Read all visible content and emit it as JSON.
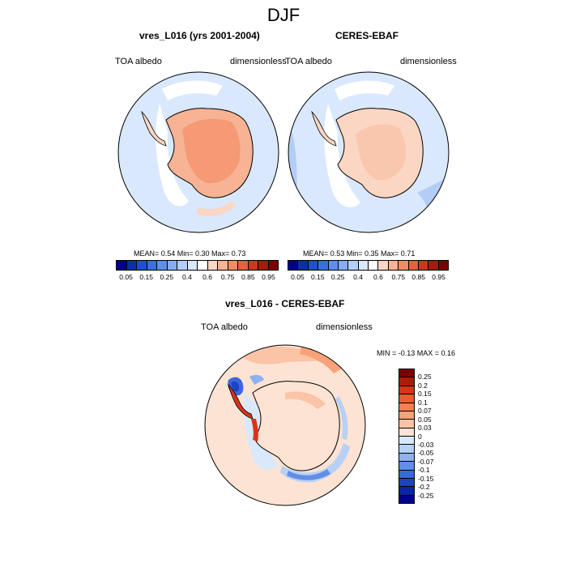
{
  "title": "DJF",
  "chart_data": [
    {
      "type": "heatmap",
      "panel": "model",
      "title": "vres_L016 (yrs 2001-2004)",
      "left_label": "TOA albedo",
      "right_label": "dimensionless",
      "stats": {
        "mean": "0.54",
        "min": "0.30",
        "max": "0.73"
      },
      "stats_text": "MEAN=   0.54  Min=   0.30  Max=   0.73",
      "projection": "south polar stereographic",
      "colorbar": {
        "ticks": [
          "0.05",
          "0.15",
          "0.25",
          "0.4",
          "0.6",
          "0.75",
          "0.85",
          "0.95"
        ],
        "levels": [
          0.05,
          0.1,
          0.15,
          0.2,
          0.25,
          0.3,
          0.4,
          0.5,
          0.6,
          0.7,
          0.75,
          0.8,
          0.85,
          0.9,
          0.95
        ],
        "colors": [
          "#00008b",
          "#0b2fa6",
          "#1f4fcf",
          "#3a6fe0",
          "#5f8fea",
          "#86adf2",
          "#b3cdf7",
          "#d9e8fc",
          "#ffffff",
          "#fbd6c2",
          "#f7b394",
          "#f08d66",
          "#e3623c",
          "#c83a20",
          "#a31c0c",
          "#7d0000"
        ]
      }
    },
    {
      "type": "heatmap",
      "panel": "observations",
      "title": "CERES-EBAF",
      "left_label": "TOA albedo",
      "right_label": "dimensionless",
      "stats": {
        "mean": "0.53",
        "min": "0.35",
        "max": "0.71"
      },
      "stats_text": "MEAN=   0.53  Min=   0.35  Max=   0.71",
      "projection": "south polar stereographic",
      "colorbar": {
        "ticks": [
          "0.05",
          "0.15",
          "0.25",
          "0.4",
          "0.6",
          "0.75",
          "0.85",
          "0.95"
        ]
      }
    },
    {
      "type": "heatmap",
      "panel": "difference",
      "title": "vres_L016 - CERES-EBAF",
      "left_label": "TOA albedo",
      "right_label": "dimensionless",
      "stats": {
        "min": "-0.13",
        "max": "0.16"
      },
      "stats_text": "MIN =  -0.13 MAX =   0.16",
      "projection": "south polar stereographic",
      "colorbar": {
        "orientation": "vertical",
        "ticks": [
          "0.25",
          "0.2",
          "0.15",
          "0.1",
          "0.07",
          "0.05",
          "0.03",
          "0",
          "-0.03",
          "-0.05",
          "-0.07",
          "-0.1",
          "-0.15",
          "-0.2",
          "-0.25"
        ],
        "colors": [
          "#7d0000",
          "#b01a0a",
          "#d8341a",
          "#ee5a32",
          "#f57f52",
          "#f8a27a",
          "#fbc4a6",
          "#fde3d3",
          "#d9e9fb",
          "#b7d1f6",
          "#8fb2ef",
          "#628fe6",
          "#3a68da",
          "#1c43c4",
          "#0a24a2",
          "#00008b"
        ]
      }
    }
  ]
}
